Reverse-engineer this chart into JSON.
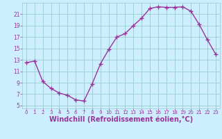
{
  "x": [
    0,
    1,
    2,
    3,
    4,
    5,
    6,
    7,
    8,
    9,
    10,
    11,
    12,
    13,
    14,
    15,
    16,
    17,
    18,
    19,
    20,
    21,
    22,
    23
  ],
  "y": [
    12.5,
    12.8,
    9.2,
    8.0,
    7.2,
    6.8,
    6.0,
    5.8,
    8.8,
    12.3,
    14.8,
    17.0,
    17.6,
    19.0,
    20.3,
    22.0,
    22.3,
    22.2,
    22.2,
    22.3,
    21.5,
    19.2,
    16.5,
    14.0
  ],
  "line_color": "#993399",
  "marker": "+",
  "marker_size": 4,
  "linewidth": 1.0,
  "bg_color": "#cceeff",
  "grid_color": "#99cccc",
  "xlabel": "Windchill (Refroidissement éolien,°C)",
  "xlabel_fontsize": 7,
  "tick_color": "#993399",
  "tick_label_color": "#993399",
  "yticks": [
    5,
    7,
    9,
    11,
    13,
    15,
    17,
    19,
    21
  ],
  "xticks": [
    0,
    1,
    2,
    3,
    4,
    5,
    6,
    7,
    8,
    9,
    10,
    11,
    12,
    13,
    14,
    15,
    16,
    17,
    18,
    19,
    20,
    21,
    22,
    23
  ],
  "xlim": [
    -0.5,
    23.5
  ],
  "ylim": [
    4.5,
    23.0
  ]
}
